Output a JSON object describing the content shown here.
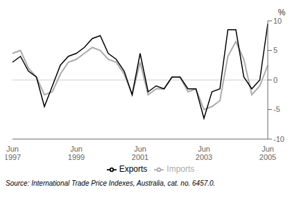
{
  "chart_data": {
    "type": "line",
    "ylabel": "%",
    "annotations": [
      "Source: International Trade Price Indexes, Australia, cat. no. 6457.0."
    ],
    "categories": [
      "Jun\n1997",
      null,
      null,
      null,
      null,
      null,
      null,
      null,
      "Jun\n1999",
      null,
      null,
      null,
      null,
      null,
      null,
      null,
      "Jun\n2001",
      null,
      null,
      null,
      null,
      null,
      null,
      null,
      "Jun\n2003",
      null,
      null,
      null,
      null,
      null,
      null,
      null,
      "Jun\n2005"
    ],
    "series": [
      {
        "name": "Imports",
        "color": "#aaaaaa",
        "values": [
          4.5,
          5.0,
          2.0,
          0.5,
          -2.5,
          -2.0,
          1.0,
          3.0,
          3.5,
          4.5,
          5.5,
          5.0,
          3.5,
          3.0,
          1.0,
          -2.5,
          3.0,
          -2.5,
          -1.5,
          -1.5,
          0.5,
          0.5,
          -2.0,
          -1.5,
          -5.0,
          -4.5,
          -3.5,
          4.0,
          6.5,
          3.5,
          -2.5,
          -1.0,
          2.5
        ]
      },
      {
        "name": "Exports",
        "color": "#000000",
        "values": [
          3.0,
          4.0,
          1.5,
          0.5,
          -4.5,
          -1.0,
          2.5,
          4.0,
          4.5,
          5.5,
          7.0,
          7.5,
          4.5,
          3.5,
          1.5,
          -2.5,
          4.5,
          -2.0,
          -1.0,
          -1.5,
          0.5,
          0.5,
          -1.5,
          -1.5,
          -6.5,
          -2.0,
          -1.5,
          8.5,
          8.5,
          0.5,
          -1.5,
          0.0,
          9.5
        ]
      }
    ],
    "ylim": [
      -10,
      10
    ],
    "yticks": [
      -10,
      -5,
      0,
      5,
      10
    ],
    "grid": false,
    "legend": "bottom"
  }
}
